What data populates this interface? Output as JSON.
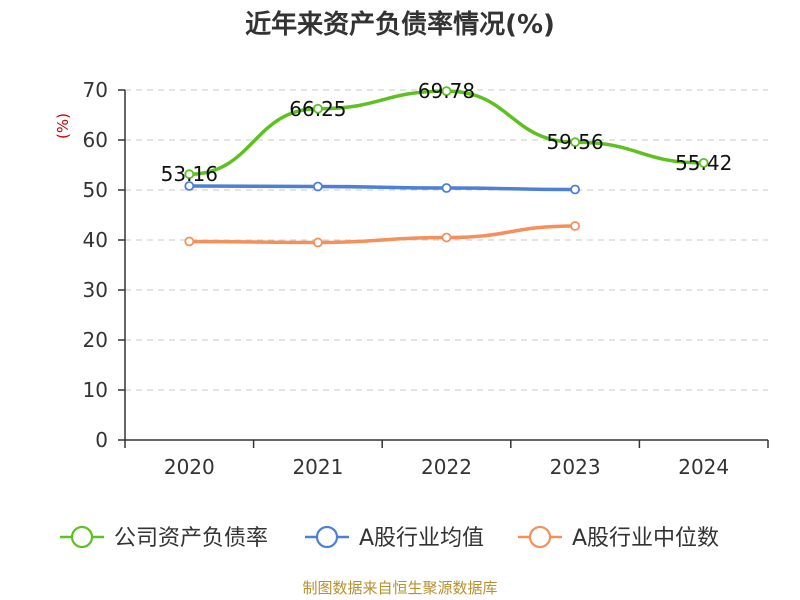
{
  "chart_data": {
    "type": "line",
    "title": "近年来资产负债率情况(%)",
    "ylabel": "(%)",
    "ylim": [
      0,
      70
    ],
    "yticks": [
      0,
      10,
      20,
      30,
      40,
      50,
      60,
      70
    ],
    "categories": [
      "2020",
      "2021",
      "2022",
      "2023",
      "2024"
    ],
    "grid": true,
    "legend_position": "bottom",
    "series": [
      {
        "name": "公司资产负债率",
        "color": "#5ec122",
        "values": [
          53.16,
          66.25,
          69.78,
          59.56,
          55.42
        ],
        "labels": [
          "53.16",
          "66.25",
          "69.78",
          "59.56",
          "55.42"
        ],
        "show_labels": true
      },
      {
        "name": "A股行业均值",
        "color": "#4d7fd8",
        "values": [
          50.8,
          50.7,
          50.4,
          50.1,
          null
        ],
        "show_labels": false
      },
      {
        "name": "A股行业中位数",
        "color": "#f5905a",
        "values": [
          39.7,
          39.5,
          40.5,
          42.8,
          null
        ],
        "show_labels": false
      }
    ],
    "source": "制图数据来自恒生聚源数据库"
  }
}
